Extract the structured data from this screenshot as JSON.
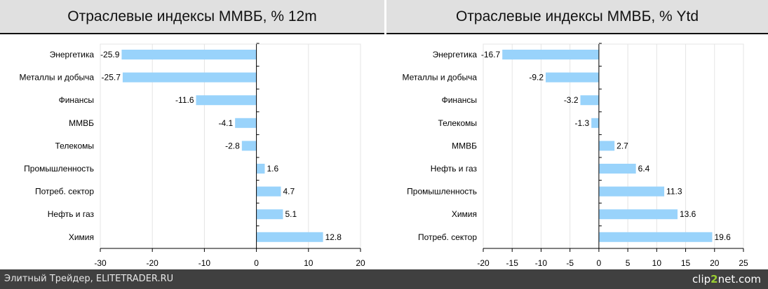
{
  "chart_data": [
    {
      "type": "bar",
      "orientation": "horizontal",
      "title": "Отраслевые индексы ММВБ, % 12m",
      "categories": [
        "Энергетика",
        "Металлы и добыча",
        "Финансы",
        "ММВБ",
        "Телекомы",
        "Промышленность",
        "Потреб. сектор",
        "Нефть и газ",
        "Химия"
      ],
      "values": [
        -25.9,
        -25.7,
        -11.6,
        -4.1,
        -2.8,
        1.6,
        4.7,
        5.1,
        12.8
      ],
      "data_labels": [
        "-25.9",
        "-25.7",
        "-11.6",
        "-4.1",
        "-2.8",
        "1.6",
        "4.7",
        "5.1",
        "12.8"
      ],
      "xlim": [
        -30,
        20
      ],
      "xticks": [
        -30,
        -20,
        -10,
        0,
        10,
        20
      ],
      "grid": true,
      "color": "#99d3fb"
    },
    {
      "type": "bar",
      "orientation": "horizontal",
      "title": "Отраслевые индексы ММВБ, % Ytd",
      "categories": [
        "Энергетика",
        "Металлы и добыча",
        "Финансы",
        "Телекомы",
        "ММВБ",
        "Нефть и газ",
        "Промышленность",
        "Химия",
        "Потреб. сектор"
      ],
      "values": [
        -16.7,
        -9.2,
        -3.2,
        -1.3,
        2.7,
        6.4,
        11.3,
        13.6,
        19.6
      ],
      "data_labels": [
        "-16.7",
        "-9.2",
        "-3.2",
        "-1.3",
        "2.7",
        "6.4",
        "11.3",
        "13.6",
        "19.6"
      ],
      "xlim": [
        -20,
        25
      ],
      "xticks": [
        -20,
        -15,
        -10,
        -5,
        0,
        5,
        10,
        15,
        20,
        25
      ],
      "grid": true,
      "color": "#99d3fb"
    }
  ],
  "footer": {
    "left": "Элитный Трейдер, ELITETRADER.RU",
    "brand_a": "clip",
    "brand_b": "2",
    "brand_c": "net.com"
  }
}
